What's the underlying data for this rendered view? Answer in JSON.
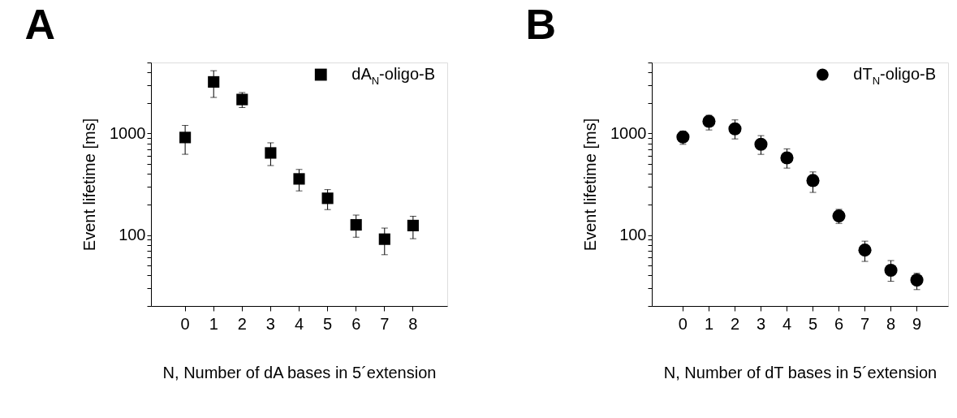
{
  "chart_data": [
    {
      "type": "scatter",
      "title": "A",
      "xlabel": "N, Number of dA bases in 5´extension",
      "ylabel": "Event lifetime [ms]",
      "log": true,
      "grid": false,
      "legend": "top right",
      "marker": "square",
      "categories": [
        "0",
        "1",
        "2",
        "3",
        "4",
        "5",
        "6",
        "7",
        "8"
      ],
      "ylim": [
        20,
        5000
      ],
      "yticks": [
        {
          "value": 20,
          "label": null
        },
        {
          "value": 30,
          "label": null
        },
        {
          "value": 40,
          "label": null
        },
        {
          "value": 50,
          "label": null
        },
        {
          "value": 60,
          "label": null
        },
        {
          "value": 70,
          "label": null
        },
        {
          "value": 80,
          "label": null
        },
        {
          "value": 90,
          "label": null
        },
        100,
        {
          "value": 200,
          "label": null
        },
        {
          "value": 300,
          "label": null
        },
        {
          "value": 400,
          "label": null
        },
        {
          "value": 500,
          "label": null
        },
        {
          "value": 600,
          "label": null
        },
        {
          "value": 700,
          "label": null
        },
        {
          "value": 800,
          "label": null
        },
        {
          "value": 900,
          "label": null
        },
        1000,
        {
          "value": 2000,
          "label": null
        },
        {
          "value": 3000,
          "label": null
        },
        {
          "value": 4000,
          "label": null
        },
        {
          "value": 5000,
          "label": null
        }
      ],
      "series": [
        {
          "name": "dA$_{N}$-oligo-B",
          "color": "#000000",
          "values": [
            913,
            3220,
            2160,
            643,
            357,
            230,
            126,
            91,
            124
          ],
          "errors": [
            [
              624,
              1200
            ],
            [
              2265,
              4150
            ],
            [
              1800,
              2530
            ],
            [
              483,
              809
            ],
            [
              272,
              442
            ],
            [
              178,
              280
            ],
            [
              95,
              157
            ],
            [
              64,
              117
            ],
            [
              92,
              153
            ]
          ]
        }
      ]
    },
    {
      "type": "scatter",
      "title": "B",
      "xlabel": "N, Number of dT bases in 5´extension",
      "ylabel": "Event lifetime [ms]",
      "log": true,
      "grid": false,
      "legend": "top right",
      "marker": "circle",
      "categories": [
        "0",
        "1",
        "2",
        "3",
        "4",
        "5",
        "6",
        "7",
        "8",
        "9"
      ],
      "ylim": [
        20,
        5000
      ],
      "yticks": [
        {
          "value": 20,
          "label": null
        },
        {
          "value": 30,
          "label": null
        },
        {
          "value": 40,
          "label": null
        },
        {
          "value": 50,
          "label": null
        },
        {
          "value": 60,
          "label": null
        },
        {
          "value": 70,
          "label": null
        },
        {
          "value": 80,
          "label": null
        },
        {
          "value": 90,
          "label": null
        },
        100,
        {
          "value": 200,
          "label": null
        },
        {
          "value": 300,
          "label": null
        },
        {
          "value": 400,
          "label": null
        },
        {
          "value": 500,
          "label": null
        },
        {
          "value": 600,
          "label": null
        },
        {
          "value": 700,
          "label": null
        },
        {
          "value": 800,
          "label": null
        },
        {
          "value": 900,
          "label": null
        },
        1000,
        {
          "value": 2000,
          "label": null
        },
        {
          "value": 3000,
          "label": null
        },
        {
          "value": 4000,
          "label": null
        },
        {
          "value": 5000,
          "label": null
        }
      ],
      "series": [
        {
          "name": "dT$_{N}$-oligo-B",
          "color": "#000000",
          "values": [
            923,
            1318,
            1110,
            782,
            575,
            344,
            154,
            71,
            45,
            36
          ],
          "errors": [
            [
              782,
              1057
            ],
            [
              1083,
              1510
            ],
            [
              884,
              1360
            ],
            [
              623,
              952
            ],
            [
              456,
              705
            ],
            [
              263,
              418
            ],
            [
              130,
              179
            ],
            [
              55,
              87
            ],
            [
              35,
              56
            ],
            [
              29,
              42
            ]
          ]
        }
      ]
    }
  ]
}
